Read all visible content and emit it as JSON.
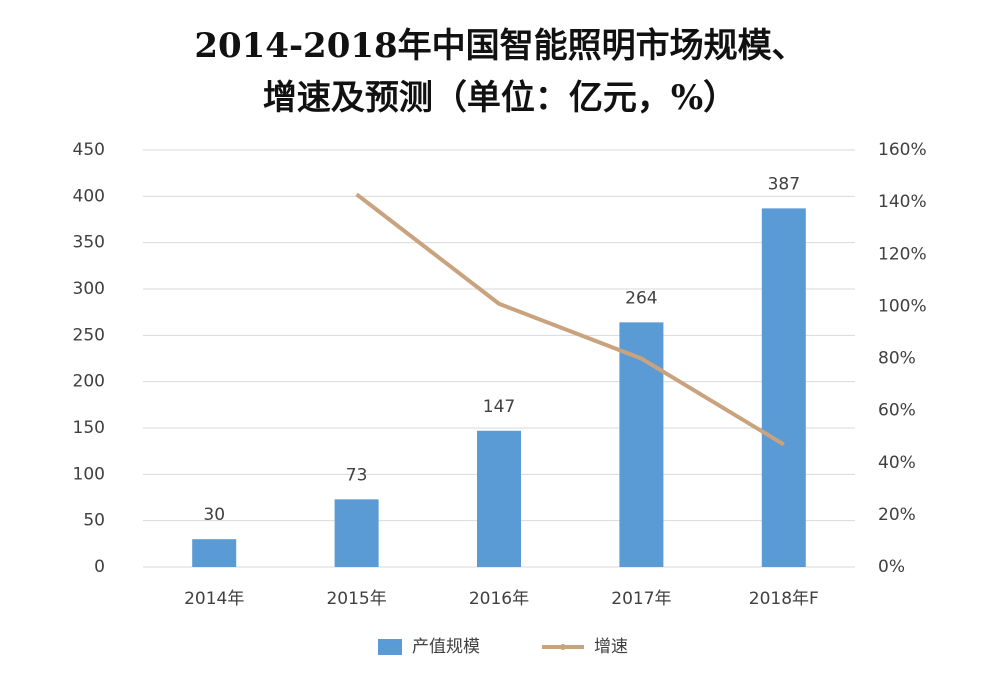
{
  "chart_data": {
    "type": "bar",
    "title": [
      "2014-2018年中国智能照明市场规模、",
      "增速及预测（单位：亿元，%）"
    ],
    "categories": [
      "2014年",
      "2015年",
      "2016年",
      "2017年",
      "2018年F"
    ],
    "series": [
      {
        "name": "产值规模",
        "type": "bar",
        "color": "#5b9bd5",
        "values": [
          30,
          73,
          147,
          264,
          387
        ]
      },
      {
        "name": "增速",
        "type": "line",
        "color": "#c9a27e",
        "axis": "y2",
        "values": [
          null,
          143,
          101,
          80,
          47
        ]
      }
    ],
    "ylim": [
      0,
      450
    ],
    "yticks": [
      0,
      50,
      100,
      150,
      200,
      250,
      300,
      350,
      400,
      450
    ],
    "y2lim": [
      0,
      160
    ],
    "y2ticks": [
      {
        "value": 0,
        "label": "0%"
      },
      {
        "value": 20,
        "label": "20%"
      },
      {
        "value": 40,
        "label": "40%"
      },
      {
        "value": 60,
        "label": "60%"
      },
      {
        "value": 80,
        "label": "80%"
      },
      {
        "value": 100,
        "label": "100%"
      },
      {
        "value": 120,
        "label": "120%"
      },
      {
        "value": 140,
        "label": "140%"
      },
      {
        "value": 160,
        "label": "160%"
      }
    ],
    "grid": true,
    "legend": "bottom"
  }
}
